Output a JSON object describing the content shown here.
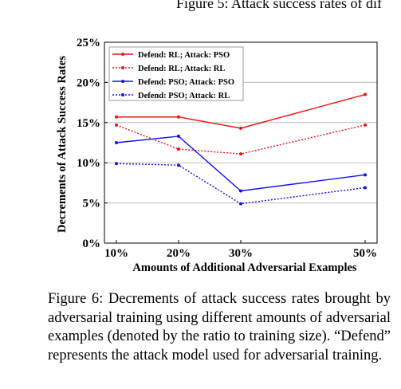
{
  "header": {
    "prev_caption": "Figure 5: Attack success rates of dif",
    "prev_mark": "'"
  },
  "caption": {
    "text": "Figure 6:  Decrements of attack success rates brought by adversarial training using different amounts of adversarial examples (denoted by the ratio to training size).  “Defend” represents the attack model used for adversarial training."
  },
  "chart_data": {
    "type": "line",
    "title": "",
    "xlabel": "Amounts of Additional Adversarial Examples",
    "ylabel": "Decrements of Attack Success Rates",
    "x": [
      10,
      20,
      30,
      50
    ],
    "x_tick_labels": [
      "10%",
      "20%",
      "30%",
      "50%"
    ],
    "y_tick_labels": [
      "0%",
      "5%",
      "10%",
      "15%",
      "20%",
      "25%"
    ],
    "y_ticks": [
      0,
      5,
      10,
      15,
      20,
      25
    ],
    "xlim": [
      10,
      50
    ],
    "ylim": [
      0,
      25
    ],
    "grid": "horizontal",
    "legend_position": "top-left",
    "series": [
      {
        "name": "Defend: RL; Attack: PSO",
        "color": "#ee1111",
        "dash": "solid",
        "values": [
          15.7,
          15.7,
          14.3,
          18.5
        ]
      },
      {
        "name": "Defend: RL; Attack: RL",
        "color": "#ee1111",
        "dash": "dotted",
        "values": [
          14.7,
          11.7,
          11.1,
          14.7
        ]
      },
      {
        "name": "Defend: PSO; Attack: PSO",
        "color": "#1111ee",
        "dash": "solid",
        "values": [
          12.5,
          13.3,
          6.5,
          8.5
        ]
      },
      {
        "name": "Defend: PSO; Attack: RL",
        "color": "#1111ee",
        "dash": "dotted",
        "values": [
          9.9,
          9.7,
          4.9,
          6.9
        ]
      }
    ]
  }
}
